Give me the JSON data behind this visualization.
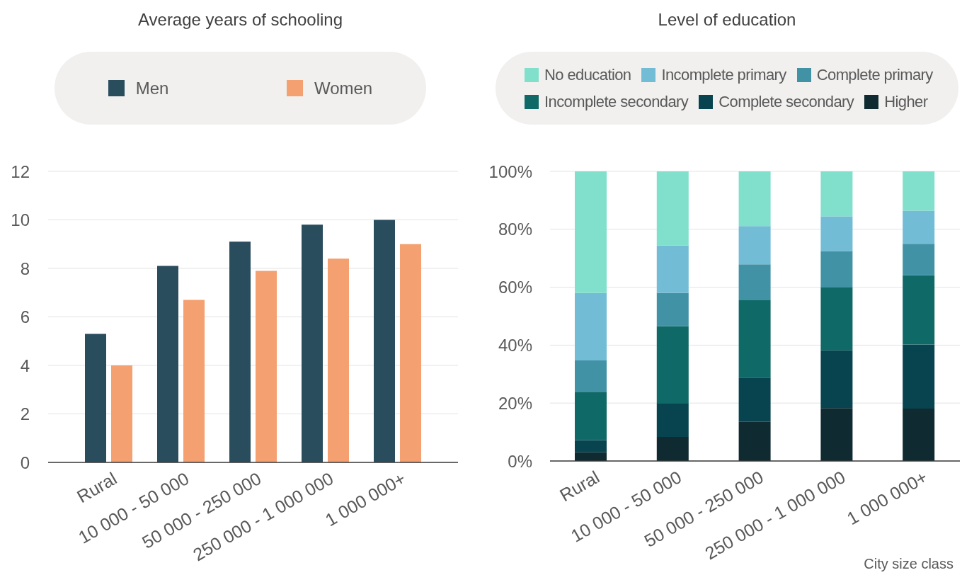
{
  "chart_data": [
    {
      "type": "bar",
      "title": "Average years of schooling",
      "categories": [
        "Rural",
        "10 000 - 50 000",
        "50 000 - 250 000",
        "250 000 - 1 000 000",
        "1 000 000+"
      ],
      "series": [
        {
          "name": "Men",
          "color": "#2a4d5e",
          "values": [
            5.3,
            8.1,
            9.1,
            9.8,
            10.0
          ]
        },
        {
          "name": "Women",
          "color": "#f4a070",
          "values": [
            4.0,
            6.7,
            7.9,
            8.4,
            9.0
          ]
        }
      ],
      "ylim": [
        0,
        12
      ],
      "yticks": [
        0,
        2,
        4,
        6,
        8,
        10,
        12
      ],
      "grid": "y",
      "legend": "top"
    },
    {
      "type": "bar",
      "title": "Level of education",
      "xlabel": "City size class",
      "stacked": true,
      "categories": [
        "Rural",
        "10 000 - 50 000",
        "50 000 - 250 000",
        "250 000 - 1 000 000",
        "1 000 000+"
      ],
      "series": [
        {
          "name": "Higher",
          "color": "#0f2a30",
          "values": [
            3.0,
            8.3,
            13.5,
            18.3,
            18.1
          ]
        },
        {
          "name": "Complete secondary",
          "color": "#08444f",
          "values": [
            4.2,
            11.5,
            15.3,
            19.9,
            22.1
          ]
        },
        {
          "name": "Incomplete secondary",
          "color": "#0f6966",
          "values": [
            16.7,
            26.7,
            26.7,
            21.7,
            23.9
          ]
        },
        {
          "name": "Complete primary",
          "color": "#4292a6",
          "values": [
            10.8,
            11.5,
            12.4,
            12.6,
            10.9
          ]
        },
        {
          "name": "Incomplete primary",
          "color": "#72bcd5",
          "values": [
            23.3,
            16.4,
            13.2,
            12.0,
            11.4
          ]
        },
        {
          "name": "No education",
          "color": "#80e0cc",
          "values": [
            42.0,
            25.6,
            18.9,
            15.5,
            13.6
          ]
        }
      ],
      "ylim": [
        0,
        100
      ],
      "yticks": [
        {
          "value": 0,
          "label": "0%"
        },
        {
          "value": 20,
          "label": "20%"
        },
        {
          "value": 40,
          "label": "40%"
        },
        {
          "value": 60,
          "label": "60%"
        },
        {
          "value": 80,
          "label": "80%"
        },
        {
          "value": 100,
          "label": "100%"
        }
      ],
      "grid": "y",
      "legend": "top"
    }
  ]
}
